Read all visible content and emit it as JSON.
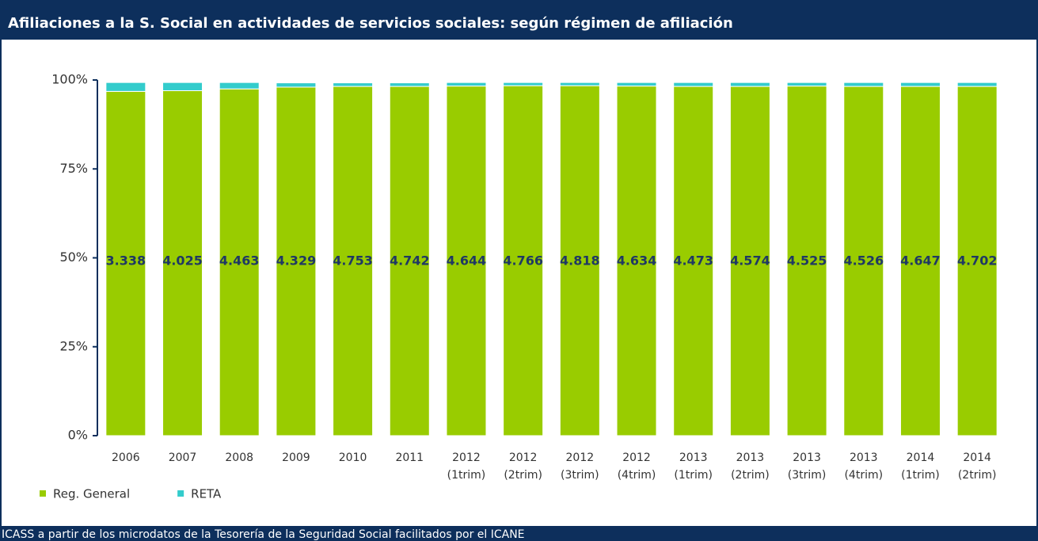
{
  "chart_data": {
    "type": "stacked_bar",
    "title": "Afiliaciones a la S. Social en actividades de servicios sociales: según régimen de afiliación",
    "source": "ICASS a partir de los microdatos de la Tesorería de la Seguridad Social facilitados por el ICANE",
    "categories": [
      "2006",
      "2007",
      "2008",
      "2009",
      "2010",
      "2011",
      "2012 (1trim)",
      "2012 (2trim)",
      "2012 (3trim)",
      "2012 (4trim)",
      "2013 (1trim)",
      "2013 (2trim)",
      "2013 (3trim)",
      "2013 (4trim)",
      "2014 (1trim)",
      "2014 (2trim)"
    ],
    "series": [
      {
        "name": "Reg. General",
        "color": "#99cc00",
        "values": [
          96.8,
          97.0,
          97.5,
          98.0,
          98.2,
          98.2,
          98.3,
          98.4,
          98.4,
          98.3,
          98.2,
          98.2,
          98.3,
          98.2,
          98.2,
          98.2
        ]
      },
      {
        "name": "RETA",
        "color": "#33cccc",
        "values": [
          2.5,
          2.3,
          1.8,
          1.2,
          1.0,
          1.0,
          1.0,
          0.9,
          0.9,
          1.0,
          1.1,
          1.1,
          1.0,
          1.1,
          1.1,
          1.1
        ]
      }
    ],
    "annotations": [
      "3.338",
      "4.025",
      "4.463",
      "4.329",
      "4.753",
      "4.742",
      "4.644",
      "4.766",
      "4.818",
      "4.634",
      "4.473",
      "4.574",
      "4.525",
      "4.526",
      "4.647",
      "4.702"
    ],
    "ylim": [
      0,
      100
    ],
    "yticks": [
      {
        "value": 0,
        "label": "0%"
      },
      {
        "value": 25,
        "label": "25%"
      },
      {
        "value": 50,
        "label": "50%"
      },
      {
        "value": 75,
        "label": "75%"
      },
      {
        "value": 100,
        "label": "100%"
      }
    ],
    "legend": "bottom-left"
  }
}
